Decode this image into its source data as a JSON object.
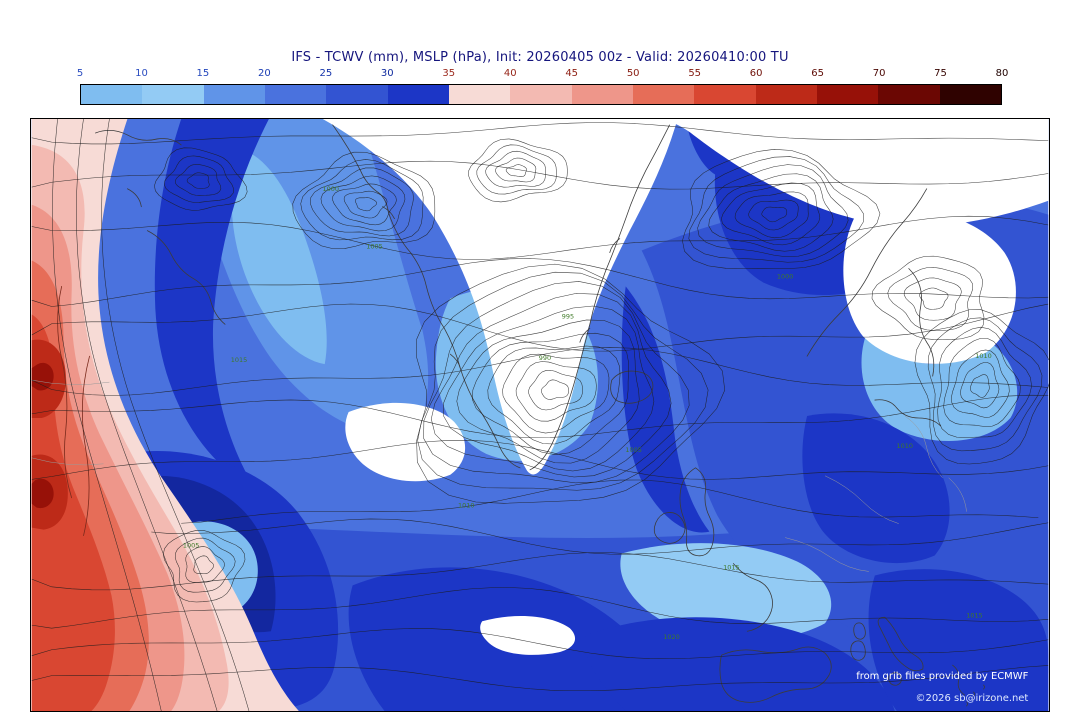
{
  "header": {
    "title": "IFS - TCWV (mm), MSLP (hPa), Init: 20260405 00z - Valid: 20260410:00 TU"
  },
  "colorbar": {
    "ticks": [
      {
        "label": "5",
        "color": "#2a4cc0"
      },
      {
        "label": "10",
        "color": "#2a4cc0"
      },
      {
        "label": "15",
        "color": "#2346bc"
      },
      {
        "label": "20",
        "color": "#1c3eb4"
      },
      {
        "label": "25",
        "color": "#1634aa"
      },
      {
        "label": "30",
        "color": "#0f2a9e"
      },
      {
        "label": "35",
        "color": "#9c2a1e"
      },
      {
        "label": "40",
        "color": "#962518"
      },
      {
        "label": "45",
        "color": "#8f2014"
      },
      {
        "label": "50",
        "color": "#881b10"
      },
      {
        "label": "55",
        "color": "#80160c"
      },
      {
        "label": "60",
        "color": "#6f1008"
      },
      {
        "label": "65",
        "color": "#5e0b05"
      },
      {
        "label": "70",
        "color": "#4a0703"
      },
      {
        "label": "75",
        "color": "#360401"
      },
      {
        "label": "80",
        "color": "#200200"
      }
    ],
    "segment_colors": [
      "#7fbdf0",
      "#93cbf4",
      "#6094e8",
      "#4a72de",
      "#3354d2",
      "#1c36c6",
      "#f7dbd6",
      "#f3bab2",
      "#ee968a",
      "#e66d58",
      "#d94732",
      "#bd2a18",
      "#971108",
      "#6b0703",
      "#2f0200"
    ],
    "value_min": 5,
    "value_max": 80
  },
  "palette": {
    "white": "#ffffff",
    "blue_l1": "#7fbdf0",
    "blue_l2": "#93cbf4",
    "blue_m1": "#6094e8",
    "blue_m2": "#4a72de",
    "blue_d1": "#3354d2",
    "blue_navy": "#1c36c6",
    "navy_dark": "#13279f",
    "pink_pale": "#f7dbd6",
    "pink": "#f3bab2",
    "salmon": "#ee968a",
    "red_orange": "#e66d58",
    "red": "#d94732",
    "red_dark": "#bd2a18",
    "maroon": "#971108"
  },
  "map": {
    "credits_line1": "from grib files provided by ECMWF",
    "credits_line2": "©2026 sb@irizone.net",
    "isobar_labels": [
      "990",
      "995",
      "1000",
      "1005",
      "1010",
      "1015",
      "1020"
    ]
  }
}
